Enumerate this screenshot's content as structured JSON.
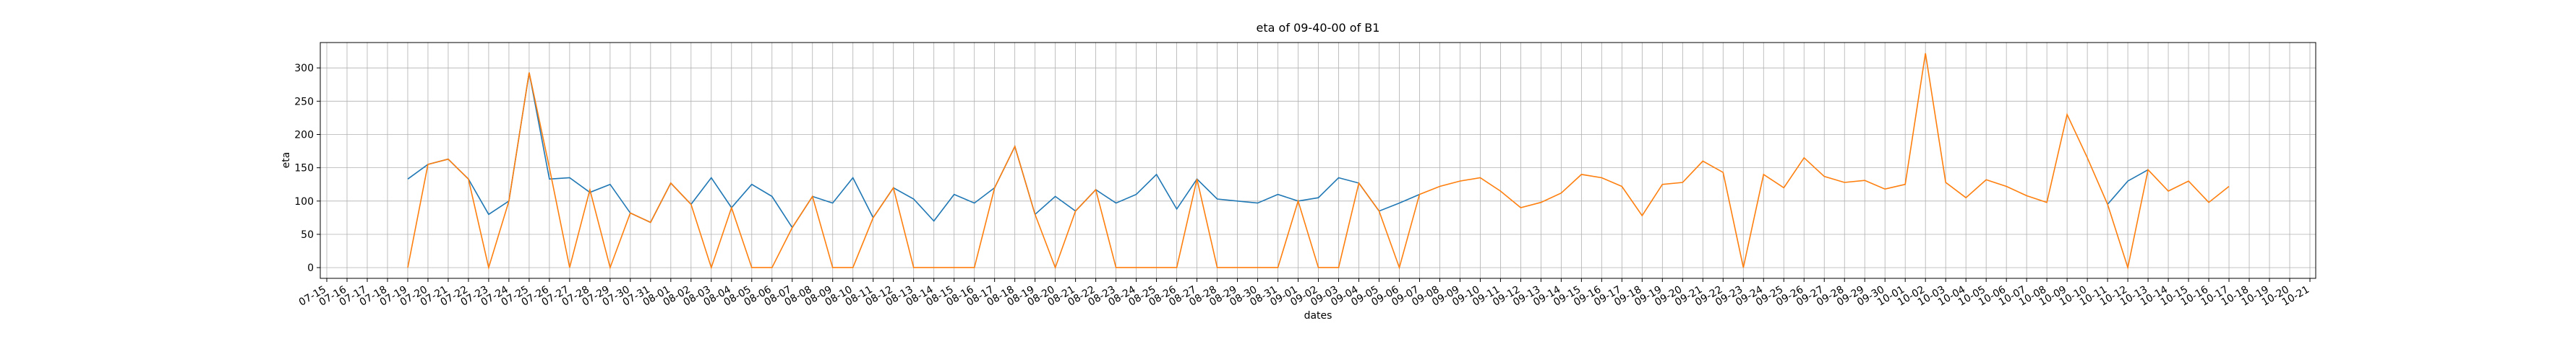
{
  "chart_data": {
    "type": "line",
    "title": "eta of 09-40-00 of B1",
    "x_label": "dates",
    "y_label": "eta",
    "categories": [
      "07-15",
      "07-16",
      "07-17",
      "07-18",
      "07-19",
      "07-20",
      "07-21",
      "07-22",
      "07-23",
      "07-24",
      "07-25",
      "07-26",
      "07-27",
      "07-28",
      "07-29",
      "07-30",
      "07-31",
      "08-01",
      "08-02",
      "08-03",
      "08-04",
      "08-05",
      "08-06",
      "08-07",
      "08-08",
      "08-09",
      "08-10",
      "08-11",
      "08-12",
      "08-13",
      "08-14",
      "08-15",
      "08-16",
      "08-17",
      "08-18",
      "08-19",
      "08-20",
      "08-21",
      "08-22",
      "08-23",
      "08-24",
      "08-25",
      "08-26",
      "08-27",
      "08-28",
      "08-29",
      "08-30",
      "08-31",
      "09-01",
      "09-02",
      "09-03",
      "09-04",
      "09-05",
      "09-06",
      "09-07",
      "09-08",
      "09-09",
      "09-10",
      "09-11",
      "09-12",
      "09-13",
      "09-14",
      "09-15",
      "09-16",
      "09-17",
      "09-18",
      "09-19",
      "09-20",
      "09-21",
      "09-22",
      "09-23",
      "09-24",
      "09-25",
      "09-26",
      "09-27",
      "09-28",
      "09-29",
      "09-30",
      "10-01",
      "10-02",
      "10-03",
      "10-04",
      "10-05",
      "10-06",
      "10-07",
      "10-08",
      "10-09",
      "10-10",
      "10-11",
      "10-12",
      "10-13",
      "10-14",
      "10-15",
      "10-16",
      "10-17",
      "10-18",
      "10-19",
      "10-20",
      "10-21"
    ],
    "series": [
      {
        "name": "blue",
        "color": "#1f77b4",
        "values": [
          null,
          null,
          null,
          null,
          133,
          155,
          163,
          133,
          80,
          100,
          293,
          133,
          135,
          113,
          125,
          82,
          68,
          127,
          95,
          135,
          90,
          125,
          107,
          60,
          107,
          97,
          135,
          75,
          120,
          103,
          70,
          110,
          97,
          120,
          182,
          80,
          107,
          85,
          117,
          97,
          110,
          140,
          88,
          133,
          103,
          100,
          97,
          110,
          100,
          105,
          135,
          127,
          85,
          97,
          110,
          null,
          null,
          null,
          null,
          null,
          null,
          null,
          null,
          null,
          null,
          null,
          null,
          null,
          null,
          null,
          null,
          null,
          null,
          null,
          null,
          null,
          null,
          null,
          null,
          null,
          null,
          null,
          null,
          null,
          null,
          null,
          null,
          null,
          95,
          130,
          147,
          null,
          null,
          null,
          null,
          null,
          null,
          null,
          null
        ]
      },
      {
        "name": "orange",
        "color": "#ff7f0e",
        "values": [
          null,
          null,
          null,
          null,
          0,
          155,
          163,
          133,
          0,
          100,
          293,
          150,
          0,
          117,
          0,
          82,
          68,
          127,
          95,
          0,
          90,
          0,
          0,
          60,
          107,
          0,
          0,
          75,
          120,
          0,
          0,
          0,
          0,
          120,
          182,
          80,
          0,
          85,
          117,
          0,
          0,
          0,
          0,
          133,
          0,
          0,
          0,
          0,
          100,
          0,
          0,
          127,
          85,
          0,
          110,
          122,
          130,
          135,
          115,
          90,
          98,
          112,
          140,
          135,
          122,
          78,
          125,
          128,
          160,
          143,
          0,
          140,
          120,
          165,
          137,
          128,
          131,
          118,
          125,
          322,
          128,
          105,
          132,
          122,
          108,
          98,
          230,
          165,
          95,
          0,
          147,
          115,
          130,
          98,
          122,
          null,
          null,
          null,
          null
        ]
      }
    ],
    "ylim": [
      -16.1,
      338.1
    ],
    "yticks": [
      0,
      50,
      100,
      150,
      200,
      250,
      300
    ],
    "grid": true
  }
}
